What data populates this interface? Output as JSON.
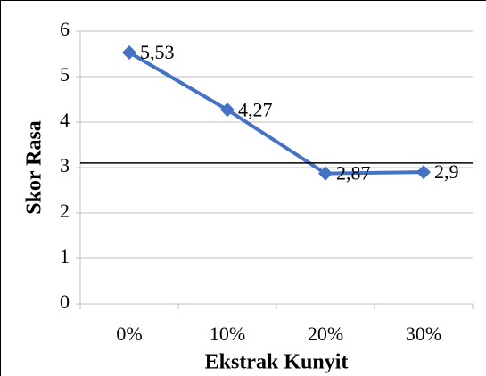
{
  "chart_data": {
    "type": "line",
    "categories": [
      "0%",
      "10%",
      "20%",
      "30%"
    ],
    "series": [
      {
        "name": "Skor Rasa",
        "color": "#4472c4",
        "values": [
          5.53,
          4.27,
          2.87,
          2.9
        ],
        "value_labels": [
          "5,53",
          "4,27",
          "2,87",
          "2,9"
        ]
      }
    ],
    "y_label": "Skor Rasa",
    "x_label": "Ekstrak Kunyit",
    "ylim": [
      0,
      6
    ],
    "yticks": [
      0,
      1,
      2,
      3,
      4,
      5,
      6
    ],
    "grid": true,
    "hline": 3.1,
    "hline_color": "#000000"
  }
}
